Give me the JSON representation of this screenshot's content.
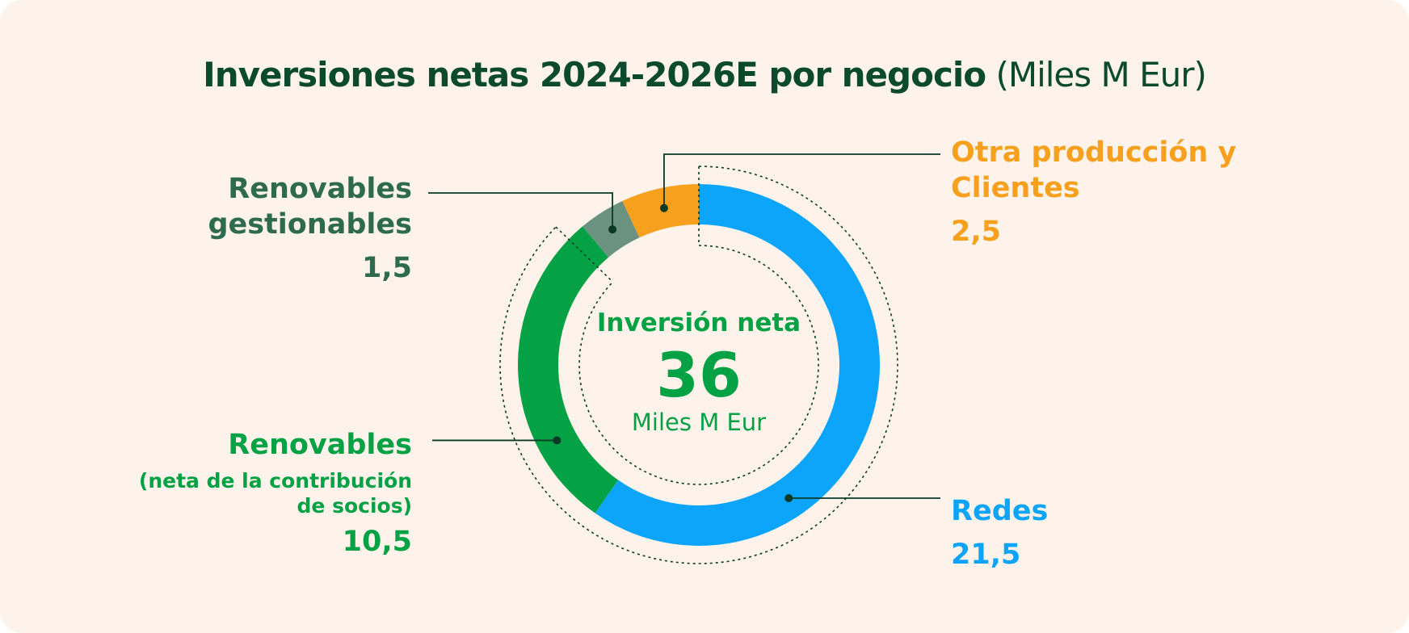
{
  "title": {
    "bold": "Inversiones netas 2024-2026E por negocio",
    "unit": "(Miles M Eur)"
  },
  "center": {
    "label": "Inversión neta",
    "value": "36",
    "unit": "Miles M Eur"
  },
  "colors": {
    "background": "#fdf3ea",
    "title": "#0b4a2c",
    "redes": "#0da5fb",
    "renovables": "#05a245",
    "renovables_gestionables": "#6b9280",
    "otra_produccion": "#f7a01e",
    "label_gestionables": "#2e6a4e",
    "leader": "#0b3a24"
  },
  "labels": {
    "otra": {
      "line1": "Otra producción y",
      "line2": "Clientes",
      "value": "2,5"
    },
    "gestionables": {
      "line1": "Renovables",
      "line2": "gestionables",
      "value": "1,5"
    },
    "renovables": {
      "line1": "Renovables",
      "line2": "(neta de la contribución",
      "line3": "de socios)",
      "value": "10,5"
    },
    "redes": {
      "line1": "Redes",
      "value": "21,5"
    }
  },
  "chart_data": {
    "type": "pie",
    "title": "Inversiones netas 2024-2026E por negocio (Miles M Eur)",
    "total": 36,
    "slices": [
      {
        "name": "Redes",
        "value": 21.5,
        "color": "#0da5fb"
      },
      {
        "name": "Renovables (neta de la contribución de socios)",
        "value": 10.5,
        "color": "#05a245"
      },
      {
        "name": "Renovables gestionables",
        "value": 1.5,
        "color": "#6b9280"
      },
      {
        "name": "Otra producción y Clientes",
        "value": 2.5,
        "color": "#f7a01e"
      }
    ]
  }
}
